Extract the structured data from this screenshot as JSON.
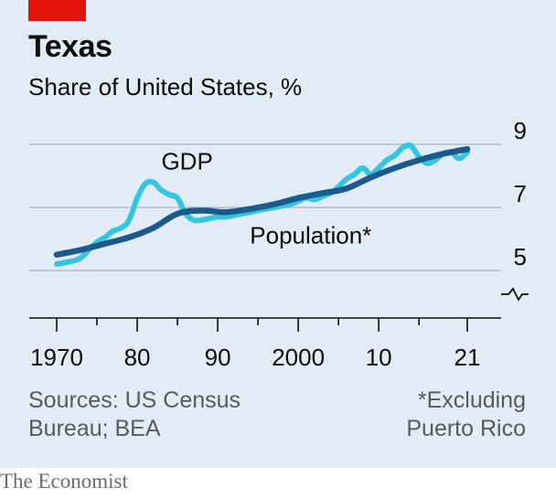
{
  "header": {
    "title": "Texas",
    "subtitle": "Share of United States, %"
  },
  "footer": {
    "sources_line1": "Sources: US Census",
    "sources_line2": "Bureau; BEA",
    "footnote_line1": "*Excluding",
    "footnote_line2": "Puerto Rico",
    "brand": "The Economist"
  },
  "colors": {
    "background": "#e1ecf6",
    "gdp": "#35c5de",
    "population": "#1b5b8c",
    "accent": "#e3120b",
    "grid": "#a9b4bd"
  },
  "chart_data": {
    "type": "line",
    "title": "Texas",
    "subtitle": "Share of United States, %",
    "xlabel": "",
    "ylabel": "",
    "xlim": [
      1970,
      2021
    ],
    "ylim": [
      4.5,
      9
    ],
    "y_ticks": [
      5,
      7,
      9
    ],
    "y_axis_break": true,
    "x_ticks": [
      1970,
      1975,
      1980,
      1985,
      1990,
      1995,
      2000,
      2005,
      2010,
      2015,
      2021
    ],
    "x_tick_labels": [
      {
        "x": 1970,
        "label": "1970"
      },
      {
        "x": 1980,
        "label": "80"
      },
      {
        "x": 1990,
        "label": "90"
      },
      {
        "x": 2000,
        "label": "2000"
      },
      {
        "x": 2010,
        "label": "10"
      },
      {
        "x": 2021,
        "label": "21"
      }
    ],
    "grid": true,
    "series": [
      {
        "name": "GDP",
        "x": [
          1970,
          1971,
          1972,
          1973,
          1974,
          1975,
          1976,
          1977,
          1978,
          1979,
          1980,
          1981,
          1982,
          1983,
          1984,
          1985,
          1986,
          1987,
          1988,
          1989,
          1990,
          1991,
          1992,
          1993,
          1994,
          1995,
          1996,
          1997,
          1998,
          1999,
          2000,
          2001,
          2002,
          2003,
          2004,
          2005,
          2006,
          2007,
          2008,
          2009,
          2010,
          2011,
          2012,
          2013,
          2014,
          2015,
          2016,
          2017,
          2018,
          2019,
          2020,
          2021
        ],
        "values": [
          5.2,
          5.25,
          5.3,
          5.4,
          5.65,
          5.9,
          6.05,
          6.25,
          6.35,
          6.6,
          7.3,
          7.75,
          7.8,
          7.55,
          7.4,
          7.3,
          6.8,
          6.6,
          6.6,
          6.65,
          6.7,
          6.7,
          6.75,
          6.8,
          6.85,
          6.9,
          6.95,
          7.0,
          7.05,
          7.1,
          7.2,
          7.3,
          7.25,
          7.35,
          7.45,
          7.65,
          7.9,
          8.05,
          8.25,
          8.05,
          8.25,
          8.5,
          8.65,
          8.9,
          8.95,
          8.6,
          8.4,
          8.5,
          8.7,
          8.75,
          8.55,
          8.75
        ]
      },
      {
        "name": "Population",
        "x": [
          1970,
          1973,
          1976,
          1979,
          1982,
          1985,
          1988,
          1991,
          1994,
          1997,
          2000,
          2003,
          2006,
          2009,
          2012,
          2015,
          2018,
          2021
        ],
        "values": [
          5.5,
          5.65,
          5.85,
          6.05,
          6.35,
          6.8,
          6.9,
          6.85,
          6.95,
          7.1,
          7.3,
          7.45,
          7.6,
          7.95,
          8.25,
          8.5,
          8.7,
          8.85
        ]
      }
    ],
    "annotations": [
      {
        "text": "GDP",
        "x": 1983,
        "y": 8.2
      },
      {
        "text": "Population*",
        "x": 1994,
        "y": 5.85
      }
    ]
  }
}
